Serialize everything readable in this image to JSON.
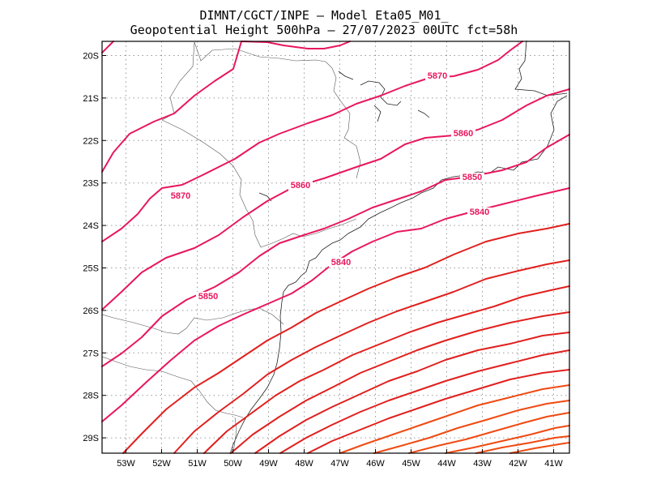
{
  "title": {
    "line1": "DIMNT/CGCT/INPE –  Model Eta05_M01_",
    "line2": "Geopotential Height 500hPa –  27/07/2023 00UTC fct=58h"
  },
  "lon_ticks": [
    "53W",
    "52W",
    "51W",
    "50W",
    "49W",
    "48W",
    "47W",
    "46W",
    "45W",
    "44W",
    "43W",
    "42W",
    "41W"
  ],
  "lat_ticks": [
    "20S",
    "21S",
    "22S",
    "23S",
    "24S",
    "25S",
    "26S",
    "27S",
    "28S",
    "29S"
  ],
  "contour_labels": [
    "5870",
    "5870",
    "5860",
    "5860",
    "5850",
    "5850",
    "5840",
    "5840"
  ],
  "colors": {
    "contour_pink": "#e8175d",
    "contour_red": "#e0201e",
    "contour_orange": "#ef4a12"
  }
}
